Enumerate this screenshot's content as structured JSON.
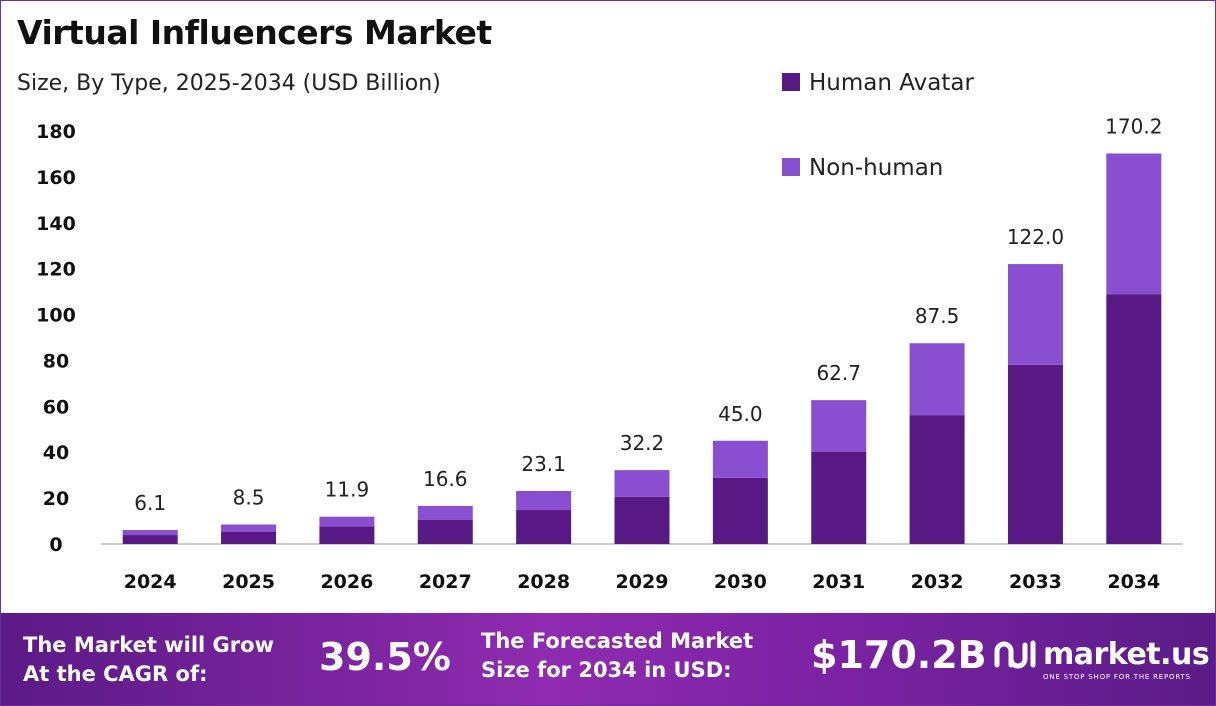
{
  "header": {
    "title": "Virtual Influencers Market",
    "subtitle": "Size, By Type, 2025-2034 (USD Billion)"
  },
  "colors": {
    "human_avatar": "#581985",
    "non_human": "#8a4fd0",
    "axis": "#999999"
  },
  "chart_data": {
    "type": "bar",
    "stacked": true,
    "title": "Virtual Influencers Market",
    "subtitle": "Size, By Type, 2025-2034 (USD Billion)",
    "xlabel": "",
    "ylabel": "",
    "ylim": [
      0,
      180
    ],
    "yticks": [
      0,
      20,
      40,
      60,
      80,
      100,
      120,
      140,
      160,
      180
    ],
    "categories": [
      "2024",
      "2025",
      "2026",
      "2027",
      "2028",
      "2029",
      "2030",
      "2031",
      "2032",
      "2033",
      "2034"
    ],
    "series": [
      {
        "name": "Human Avatar",
        "values": [
          3.9,
          5.4,
          7.6,
          10.6,
          14.8,
          20.6,
          28.8,
          40.1,
          56.0,
          78.1,
          108.9
        ]
      },
      {
        "name": "Non-human",
        "values": [
          2.2,
          3.1,
          4.3,
          6.0,
          8.3,
          11.6,
          16.2,
          22.6,
          31.5,
          43.9,
          61.3
        ]
      }
    ],
    "totals": [
      "6.1",
      "8.5",
      "11.9",
      "16.6",
      "23.1",
      "32.2",
      "45.0",
      "62.7",
      "87.5",
      "122.0",
      "170.2"
    ],
    "legend": {
      "position": "top-right",
      "entries": [
        "Human Avatar",
        "Non-human"
      ]
    },
    "grid": false
  },
  "footer": {
    "cagr_label_line1": "The Market will Grow",
    "cagr_label_line2": "At the CAGR of:",
    "cagr_value": "39.5%",
    "forecast_label_line1": "The Forecasted Market",
    "forecast_label_line2": "Size for 2034 in USD:",
    "forecast_value": "$170.2B",
    "brand_name": "market.us",
    "brand_tagline": "ONE STOP SHOP FOR THE REPORTS"
  }
}
